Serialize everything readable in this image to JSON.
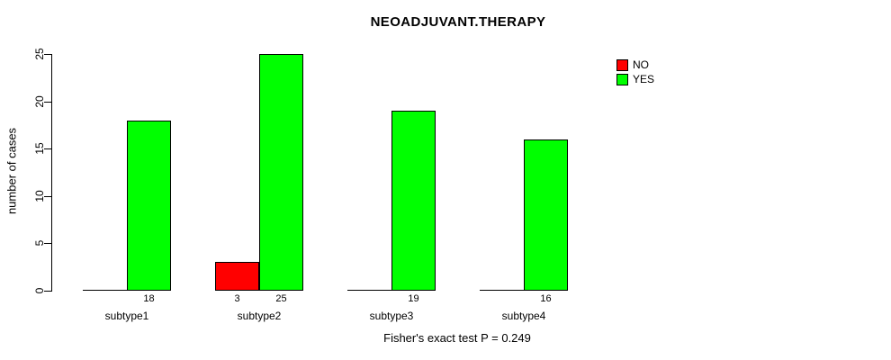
{
  "chart_data": {
    "type": "bar",
    "title": "NEOADJUVANT.THERAPY",
    "ylabel": "number of cases",
    "xlabel": "",
    "categories": [
      "subtype1",
      "subtype2",
      "subtype3",
      "subtype4"
    ],
    "series": [
      {
        "name": "NO",
        "color": "#ff0000",
        "values": [
          0,
          3,
          0,
          0
        ]
      },
      {
        "name": "YES",
        "color": "#00ff00",
        "values": [
          18,
          25,
          19,
          16
        ]
      }
    ],
    "bar_value_labels": [
      "18",
      "3",
      "25",
      "19",
      "16"
    ],
    "yticks": [
      0,
      5,
      10,
      15,
      20,
      25
    ],
    "ylim": [
      0,
      25
    ],
    "grid": false,
    "legend_position": "top-right",
    "annotation": "Fisher's exact test P = 0.249"
  }
}
